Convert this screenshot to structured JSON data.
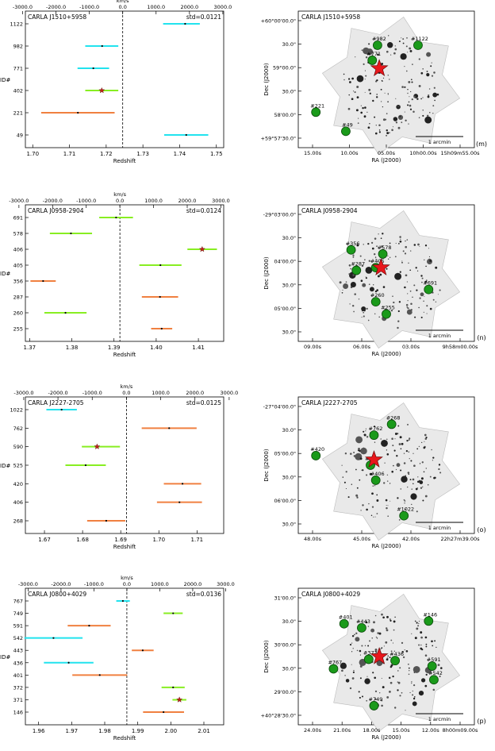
{
  "panels": [
    {
      "letter": "(m)",
      "chart_data": {
        "type": "errorbar",
        "title": "CARLA J1510+5958",
        "std_label": "std=0.0121",
        "xlabel": "Redshift",
        "ylabel": "ID#",
        "top_xlabel": "km/s",
        "xlim": [
          1.698,
          1.752
        ],
        "xticks": [
          1.7,
          1.71,
          1.72,
          1.73,
          1.74,
          1.75
        ],
        "xtick_labels": [
          "1.70",
          "1.71",
          "1.72",
          "1.73",
          "1.74",
          "1.75"
        ],
        "top_ticks": [
          "-3000.0",
          "-2000.0",
          "-1000.0",
          "0.0",
          "1000.0",
          "2000.0",
          "3000.0"
        ],
        "dashed_z": 1.7245,
        "series": [
          {
            "id": "1122",
            "z": 1.7415,
            "zmin": 1.7355,
            "zmax": 1.7455,
            "color": "#22e3ee",
            "star": false
          },
          {
            "id": "982",
            "z": 1.7189,
            "zmin": 1.7143,
            "zmax": 1.7233,
            "color": "#22e3ee",
            "star": false
          },
          {
            "id": "771",
            "z": 1.7165,
            "zmin": 1.7122,
            "zmax": 1.7208,
            "color": "#22e3ee",
            "star": false
          },
          {
            "id": "402",
            "z": 1.7188,
            "zmin": 1.7143,
            "zmax": 1.7233,
            "color": "#88ee22",
            "star": true
          },
          {
            "id": "221",
            "z": 1.7123,
            "zmin": 1.7023,
            "zmax": 1.7223,
            "color": "#f08040",
            "star": false
          },
          {
            "id": "49",
            "z": 1.7418,
            "zmin": 1.7358,
            "zmax": 1.7478,
            "color": "#22e3ee",
            "star": false
          }
        ]
      },
      "image": {
        "title": "CARLA J1510+5958",
        "xlabel": "RA (J2000)",
        "ylabel": "Dec (J2000)",
        "xticks": [
          "15.00s",
          "10.00s",
          "05.00s",
          "10h00.00s",
          "15h09m55.00s"
        ],
        "yticks": [
          "+60°00'00.0\"",
          "30.0\"",
          "59°00.0\"",
          "30.0\"",
          "58'00.0\"",
          "+59°57'30.0\""
        ],
        "scalebar": "1 arcmin",
        "sources": [
          {
            "label": "#982",
            "u": 0.45,
            "v": 0.25
          },
          {
            "label": "#1122",
            "u": 0.68,
            "v": 0.25
          },
          {
            "label": "#771",
            "u": 0.42,
            "v": 0.36
          },
          {
            "label": "#221",
            "u": 0.1,
            "v": 0.74
          },
          {
            "label": "#49",
            "u": 0.27,
            "v": 0.88
          }
        ],
        "star": {
          "u": 0.46,
          "v": 0.42
        }
      }
    },
    {
      "letter": "(n)",
      "chart_data": {
        "type": "errorbar",
        "title": "CARLA J0958-2904",
        "std_label": "std=0.0124",
        "xlabel": "Redshift",
        "ylabel": "ID#",
        "top_xlabel": "km/s",
        "xlim": [
          1.369,
          1.416
        ],
        "xticks": [
          1.37,
          1.38,
          1.39,
          1.4,
          1.41
        ],
        "xtick_labels": [
          "1.37",
          "1.38",
          "1.39",
          "1.40",
          "1.41"
        ],
        "top_ticks": [
          "-3000.0",
          "-2000.0",
          "-1000.0",
          "0.0",
          "1000.0",
          "2000.0",
          "3000.0"
        ],
        "dashed_z": 1.3914,
        "series": [
          {
            "id": "691",
            "z": 1.3905,
            "zmin": 1.3865,
            "zmax": 1.3945,
            "color": "#88ee22",
            "star": false
          },
          {
            "id": "578",
            "z": 1.3798,
            "zmin": 1.3748,
            "zmax": 1.3848,
            "color": "#88ee22",
            "star": false
          },
          {
            "id": "406",
            "z": 1.4109,
            "zmin": 1.4074,
            "zmax": 1.4144,
            "color": "#88ee22",
            "star": true
          },
          {
            "id": "405",
            "z": 1.401,
            "zmin": 1.396,
            "zmax": 1.406,
            "color": "#88ee22",
            "star": false
          },
          {
            "id": "356",
            "z": 1.3732,
            "zmin": 1.3702,
            "zmax": 1.3762,
            "color": "#f08040",
            "star": false
          },
          {
            "id": "287",
            "z": 1.4009,
            "zmin": 1.3966,
            "zmax": 1.4052,
            "color": "#f08040",
            "star": false
          },
          {
            "id": "260",
            "z": 1.3785,
            "zmin": 1.3735,
            "zmax": 1.3835,
            "color": "#88ee22",
            "star": false
          },
          {
            "id": "255",
            "z": 1.4013,
            "zmin": 1.3988,
            "zmax": 1.4038,
            "color": "#f08040",
            "star": false
          }
        ]
      },
      "image": {
        "title": "CARLA J0958-2904",
        "xlabel": "RA (J2000)",
        "ylabel": "Dec (J2000)",
        "xticks": [
          "09.00s",
          "06.00s",
          "03.00s",
          "9h58m00.00s"
        ],
        "yticks": [
          "-29°03'00.0\"",
          "30.0\"",
          "04'00.0\"",
          "30.0\"",
          "05'00.0\"",
          "30.0\""
        ],
        "scalebar": "1 arcmin",
        "sources": [
          {
            "label": "#356",
            "u": 0.3,
            "v": 0.33
          },
          {
            "label": "#578",
            "u": 0.48,
            "v": 0.36
          },
          {
            "label": "#287",
            "u": 0.33,
            "v": 0.48
          },
          {
            "label": "#405",
            "u": 0.44,
            "v": 0.46
          },
          {
            "label": "#691",
            "u": 0.74,
            "v": 0.62
          },
          {
            "label": "#260",
            "u": 0.44,
            "v": 0.71
          },
          {
            "label": "#255",
            "u": 0.5,
            "v": 0.8
          }
        ],
        "star": {
          "u": 0.47,
          "v": 0.46
        }
      }
    },
    {
      "letter": "(o)",
      "chart_data": {
        "type": "errorbar",
        "title": "CARLA J2227-2705",
        "std_label": "std=0.0125",
        "xlabel": "Redshift",
        "ylabel": "ID#",
        "top_xlabel": "km/s",
        "xlim": [
          1.665,
          1.717
        ],
        "xticks": [
          1.67,
          1.68,
          1.69,
          1.7,
          1.71
        ],
        "xtick_labels": [
          "1.67",
          "1.68",
          "1.69",
          "1.70",
          "1.71"
        ],
        "top_ticks": [
          "-3000.0",
          "-2000.0",
          "-1000.0",
          "0.0",
          "1000.0",
          "2000.0",
          "3000.0"
        ],
        "dashed_z": 1.6915,
        "series": [
          {
            "id": "1022",
            "z": 1.6745,
            "zmin": 1.6705,
            "zmax": 1.6785,
            "color": "#22e3ee",
            "star": false
          },
          {
            "id": "762",
            "z": 1.7027,
            "zmin": 1.6955,
            "zmax": 1.7099,
            "color": "#f08040",
            "star": false
          },
          {
            "id": "590",
            "z": 1.6838,
            "zmin": 1.6798,
            "zmax": 1.6898,
            "color": "#88ee22",
            "star": true
          },
          {
            "id": "525",
            "z": 1.6808,
            "zmin": 1.6755,
            "zmax": 1.6861,
            "color": "#88ee22",
            "star": false
          },
          {
            "id": "420",
            "z": 1.7062,
            "zmin": 1.7013,
            "zmax": 1.7111,
            "color": "#f08040",
            "star": false
          },
          {
            "id": "406",
            "z": 1.7054,
            "zmin": 1.6995,
            "zmax": 1.7113,
            "color": "#f08040",
            "star": false
          },
          {
            "id": "268",
            "z": 1.6862,
            "zmin": 1.6812,
            "zmax": 1.6912,
            "color": "#f08040",
            "star": false
          }
        ]
      },
      "image": {
        "title": "CARLA J2227-2705",
        "xlabel": "RA (J2000)",
        "ylabel": "Dec (J2000)",
        "xticks": [
          "48.00s",
          "45.00s",
          "42.00s",
          "22h27m39.00s"
        ],
        "yticks": [
          "-27°04'00.0\"",
          "30.0\"",
          "05'00.0\"",
          "30.0\"",
          "06'00.0\"",
          "30.0\""
        ],
        "scalebar": "1 arcmin",
        "sources": [
          {
            "label": "#268",
            "u": 0.53,
            "v": 0.2
          },
          {
            "label": "#762",
            "u": 0.43,
            "v": 0.28
          },
          {
            "label": "#420",
            "u": 0.1,
            "v": 0.43
          },
          {
            "label": "#525",
            "u": 0.41,
            "v": 0.5
          },
          {
            "label": "#406",
            "u": 0.44,
            "v": 0.61
          },
          {
            "label": "#1022",
            "u": 0.6,
            "v": 0.87
          }
        ],
        "star": {
          "u": 0.43,
          "v": 0.46
        }
      }
    },
    {
      "letter": "(p)",
      "chart_data": {
        "type": "errorbar",
        "title": "CARLA J0800+4029",
        "std_label": "std=0.0136",
        "xlabel": "Redshift",
        "ylabel": "ID#",
        "top_xlabel": "km/s",
        "xlim": [
          1.956,
          2.016
        ],
        "xticks": [
          1.96,
          1.97,
          1.98,
          1.99,
          2.0,
          2.01
        ],
        "xtick_labels": [
          "1.96",
          "1.97",
          "1.98",
          "1.99",
          "2.00",
          "2.01"
        ],
        "top_ticks": [
          "-3000.0",
          "-2000.0",
          "-1000.0",
          "0.0",
          "1000.0",
          "2000.0",
          "3000.0"
        ],
        "dashed_z": 1.9867,
        "series": [
          {
            "id": "767",
            "z": 1.9855,
            "zmin": 1.9835,
            "zmax": 1.9876,
            "color": "#22e3ee",
            "star": false
          },
          {
            "id": "749",
            "z": 2.0007,
            "zmin": 1.9978,
            "zmax": 2.0036,
            "color": "#88ee22",
            "star": false
          },
          {
            "id": "591",
            "z": 1.9753,
            "zmin": 1.9688,
            "zmax": 1.9818,
            "color": "#f08040",
            "star": false
          },
          {
            "id": "542",
            "z": 1.9645,
            "zmin": 1.9557,
            "zmax": 1.9733,
            "color": "#22e3ee",
            "star": false
          },
          {
            "id": "443",
            "z": 1.9915,
            "zmin": 1.9882,
            "zmax": 1.9948,
            "color": "#f08040",
            "star": false
          },
          {
            "id": "436",
            "z": 1.9691,
            "zmin": 1.9616,
            "zmax": 1.9766,
            "color": "#22e3ee",
            "star": false
          },
          {
            "id": "401",
            "z": 1.9785,
            "zmin": 1.9702,
            "zmax": 1.9868,
            "color": "#f08040",
            "star": false
          },
          {
            "id": "372",
            "z": 2.0007,
            "zmin": 1.9972,
            "zmax": 2.0042,
            "color": "#88ee22",
            "star": false
          },
          {
            "id": "371",
            "z": 2.0026,
            "zmin": 2.0005,
            "zmax": 2.0047,
            "color": "#88ee22",
            "star": true
          },
          {
            "id": "146",
            "z": 1.9978,
            "zmin": 1.9916,
            "zmax": 2.004,
            "color": "#f08040",
            "star": false
          }
        ]
      },
      "image": {
        "title": "CARLA J0800+4029",
        "xlabel": "RA (J2000)",
        "ylabel": "Dec (J2000)",
        "xticks": [
          "24.00s",
          "21.00s",
          "18.00s",
          "15.00s",
          "12.00s",
          "8h00m09.00s"
        ],
        "yticks": [
          "31'00.0\"",
          "30.0\"",
          "30'00.0\"",
          "30.0\"",
          "29'00.0\"",
          "+40°28'30.0\""
        ],
        "scalebar": "1 arcmin",
        "sources": [
          {
            "label": "#401",
            "u": 0.26,
            "v": 0.26
          },
          {
            "label": "#443",
            "u": 0.36,
            "v": 0.29
          },
          {
            "label": "#146",
            "u": 0.74,
            "v": 0.24
          },
          {
            "label": "#372",
            "u": 0.4,
            "v": 0.52
          },
          {
            "label": "#436",
            "u": 0.55,
            "v": 0.53
          },
          {
            "label": "#767",
            "u": 0.2,
            "v": 0.59
          },
          {
            "label": "#591",
            "u": 0.76,
            "v": 0.57
          },
          {
            "label": "#542",
            "u": 0.77,
            "v": 0.67
          },
          {
            "label": "#749",
            "u": 0.43,
            "v": 0.86
          }
        ],
        "star": {
          "u": 0.46,
          "v": 0.5
        }
      }
    }
  ]
}
